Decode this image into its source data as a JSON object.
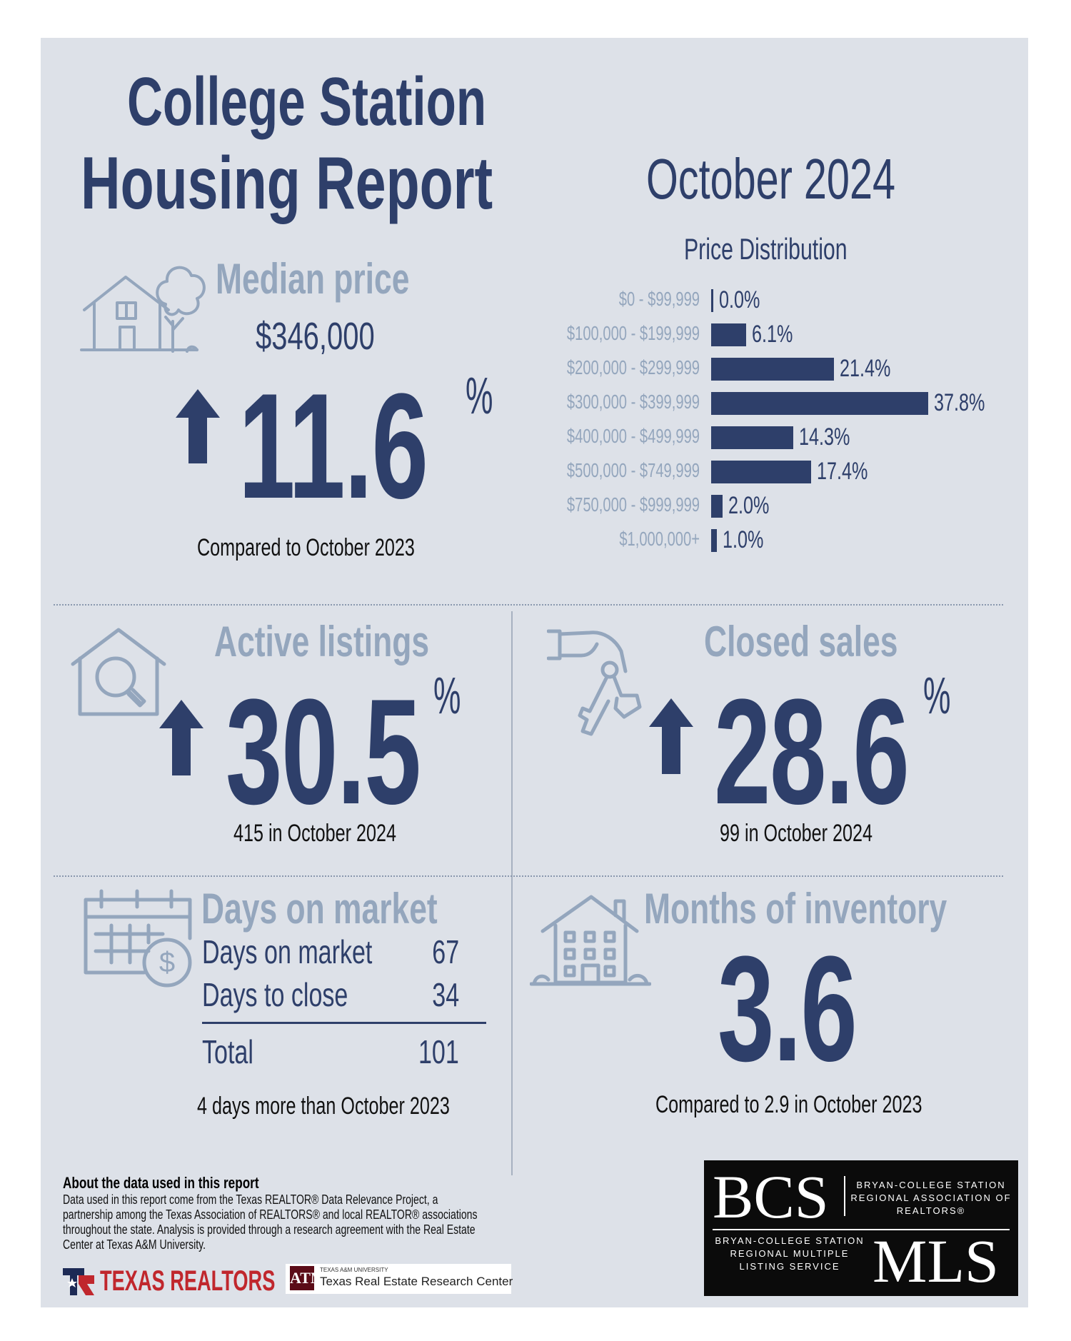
{
  "header": {
    "title_line1": "College Station",
    "title_line2": "Housing Report",
    "month": "October 2024"
  },
  "median_price": {
    "label": "Median price",
    "value": "$346,000",
    "change": "11.6",
    "change_unit": "%",
    "direction": "up",
    "comparison": "Compared to October 2023",
    "icon": "house-with-tree-icon"
  },
  "price_distribution": {
    "title": "Price Distribution"
  },
  "chart_data": {
    "type": "bar",
    "orientation": "horizontal",
    "title": "Price Distribution",
    "categories": [
      "$0 - $99,999",
      "$100,000 - $199,999",
      "$200,000 - $299,999",
      "$300,000 - $399,999",
      "$400,000 - $499,999",
      "$500,000 - $749,999",
      "$750,000 - $999,999",
      "$1,000,000+"
    ],
    "values": [
      0.0,
      6.1,
      21.4,
      37.8,
      14.3,
      17.4,
      2.0,
      1.0
    ],
    "value_labels": [
      "0.0%",
      "6.1%",
      "21.4%",
      "37.8%",
      "14.3%",
      "17.4%",
      "2.0%",
      "1.0%"
    ],
    "xlabel": "",
    "ylabel": "",
    "grid": false,
    "bar_color": "#2e3f6a"
  },
  "active_listings": {
    "label": "Active listings",
    "change": "30.5",
    "change_unit": "%",
    "direction": "up",
    "detail": "415 in October 2024",
    "icon": "house-magnifier-icon"
  },
  "closed_sales": {
    "label": "Closed sales",
    "change": "28.6",
    "change_unit": "%",
    "direction": "up",
    "detail": "99 in October 2024",
    "icon": "hand-with-keys-icon"
  },
  "days_on_market": {
    "label": "Days on market",
    "rows": [
      {
        "label": "Days on market",
        "value": "67"
      },
      {
        "label": "Days to close",
        "value": "34"
      }
    ],
    "total_label": "Total",
    "total_value": "101",
    "comparison": "4 days more than October 2023",
    "icon": "calendar-dollar-icon"
  },
  "months_of_inventory": {
    "label": "Months of inventory",
    "value": "3.6",
    "comparison": "Compared to 2.9 in October 2023",
    "icon": "apartment-building-icon"
  },
  "about": {
    "title": "About the data used in this report",
    "body": "Data used in this report come from the Texas REALTOR® Data Relevance Project, a partnership among the Texas Association of REALTORS® and local REALTOR® associations throughout the state. Analysis is provided through a research agreement with the Real Estate Center at Texas A&M University."
  },
  "logos": {
    "texas_realtors": "TEXAS REALTORS",
    "tamu_small": "TEXAS A&M UNIVERSITY",
    "tamu_main": "Texas Real Estate Research Center",
    "tamu_mark": "ATM",
    "bcs_big": "BCS",
    "bcs_assoc": "BRYAN-COLLEGE STATION REGIONAL ASSOCIATION OF REALTORS®",
    "mls_big": "MLS",
    "mls_desc": "BRYAN-COLLEGE STATION REGIONAL MULTIPLE LISTING SERVICE"
  },
  "colors": {
    "navy": "#2e3f6a",
    "muted": "#94a6bd",
    "background": "#dde1e8"
  }
}
